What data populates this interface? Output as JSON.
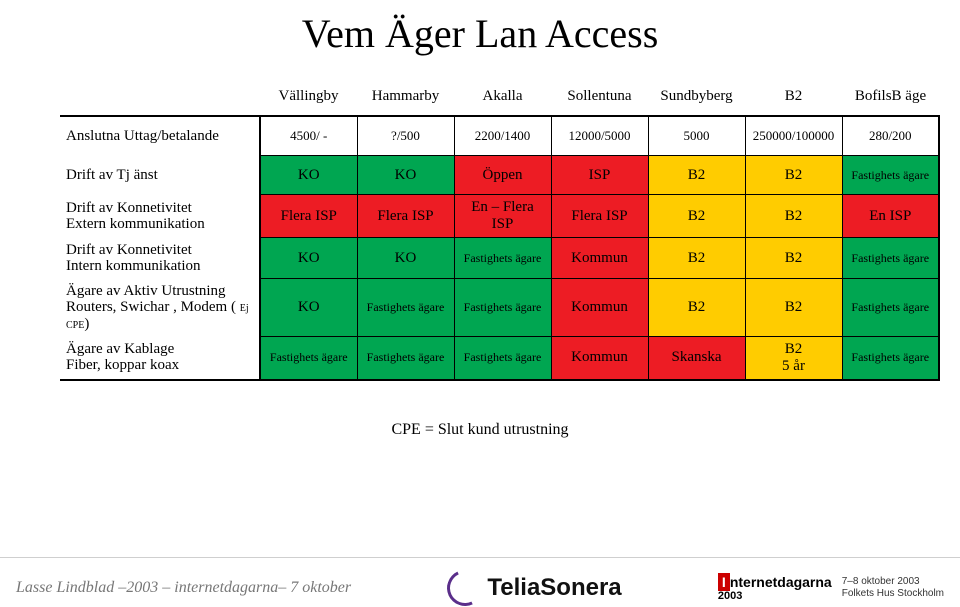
{
  "title": "Vem Äger Lan Access",
  "colors": {
    "green": "#00a651",
    "red": "#ed1c24",
    "yellow": "#ffcc00",
    "white": "#ffffff"
  },
  "columns": [
    "Vällingby",
    "Hammarby",
    "Akalla",
    "Sollentuna",
    "Sundbyberg",
    "B2",
    "BofilsB äge"
  ],
  "rows": [
    {
      "label": "Anslutna Uttag/betalande",
      "cells": [
        {
          "text": "4500/ -",
          "bg": "white"
        },
        {
          "text": "?/500",
          "bg": "white"
        },
        {
          "text": "2200/1400",
          "bg": "white"
        },
        {
          "text": "12000/5000",
          "bg": "white"
        },
        {
          "text": "5000",
          "bg": "white"
        },
        {
          "text": "250000/100000",
          "bg": "white"
        },
        {
          "text": "280/200",
          "bg": "white"
        }
      ]
    },
    {
      "label": "Drift av Tj änst",
      "cells": [
        {
          "text": "KO",
          "bg": "green"
        },
        {
          "text": "KO",
          "bg": "green"
        },
        {
          "text": "Öppen",
          "bg": "red"
        },
        {
          "text": "ISP",
          "bg": "red"
        },
        {
          "text": "B2",
          "bg": "yellow"
        },
        {
          "text": "B2",
          "bg": "yellow"
        },
        {
          "text": "Fastighets ägare",
          "bg": "green"
        }
      ]
    },
    {
      "label": "Drift av Konnetivitet\nExtern kommunikation",
      "cells": [
        {
          "text": "Flera ISP",
          "bg": "red"
        },
        {
          "text": "Flera ISP",
          "bg": "red"
        },
        {
          "text": "En – Flera ISP",
          "bg": "red"
        },
        {
          "text": "Flera ISP",
          "bg": "red"
        },
        {
          "text": "B2",
          "bg": "yellow"
        },
        {
          "text": "B2",
          "bg": "yellow"
        },
        {
          "text": "En ISP",
          "bg": "red"
        }
      ]
    },
    {
      "label": "Drift av Konnetivitet\nIntern kommunikation",
      "cells": [
        {
          "text": "KO",
          "bg": "green"
        },
        {
          "text": "KO",
          "bg": "green"
        },
        {
          "text": "Fastighets ägare",
          "bg": "green"
        },
        {
          "text": "Kommun",
          "bg": "red"
        },
        {
          "text": "B2",
          "bg": "yellow"
        },
        {
          "text": "B2",
          "bg": "yellow"
        },
        {
          "text": "Fastighets ägare",
          "bg": "green"
        }
      ]
    },
    {
      "label_html": "Ägare av Aktiv Utrustning\nRouters, Swichar , Modem ( <span class='ej'>Ej CPE</span>)",
      "cells": [
        {
          "text": "KO",
          "bg": "green"
        },
        {
          "text": "Fastighets ägare",
          "bg": "green"
        },
        {
          "text": "Fastighets ägare",
          "bg": "green"
        },
        {
          "text": "Kommun",
          "bg": "red"
        },
        {
          "text": "B2",
          "bg": "yellow"
        },
        {
          "text": "B2",
          "bg": "yellow"
        },
        {
          "text": "Fastighets ägare",
          "bg": "green"
        }
      ]
    },
    {
      "label": "Ägare av Kablage\nFiber, koppar  koax",
      "cells": [
        {
          "text": "Fastighets ägare",
          "bg": "green"
        },
        {
          "text": "Fastighets ägare",
          "bg": "green"
        },
        {
          "text": "Fastighets ägare",
          "bg": "green"
        },
        {
          "text": "Kommun",
          "bg": "red"
        },
        {
          "text": "Skanska",
          "bg": "red"
        },
        {
          "text": "B2\n5 år",
          "bg": "yellow"
        },
        {
          "text": "Fastighets ägare",
          "bg": "green"
        }
      ]
    }
  ],
  "footnote": "CPE = Slut kund utrustning",
  "footer": {
    "left": "Lasse Lindblad  –2003 – internetdagarna– 7 oktober",
    "center": "TeliaSonera",
    "right_brand_top": "Internetdagarna",
    "right_brand_year": "2003",
    "right_date": "7–8 oktober 2003",
    "right_place": "Folkets Hus Stockholm"
  }
}
